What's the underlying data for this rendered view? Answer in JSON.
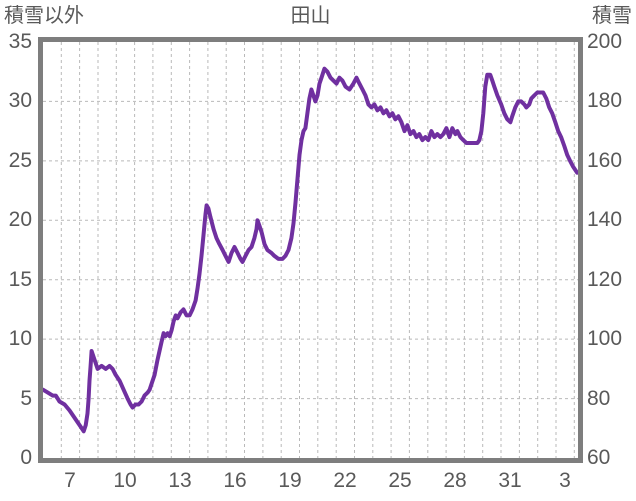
{
  "page": {
    "background": "#ffffff"
  },
  "chart_data": {
    "type": "line",
    "title": "田山",
    "grid": true,
    "colors": {
      "border": "#7e7e7e",
      "gridline": "#b9b9b9",
      "text": "#595959",
      "line": "#7030A0"
    },
    "left_axis": {
      "label": "積雪以外",
      "min": 0,
      "max": 35,
      "ticks": [
        0,
        5,
        10,
        15,
        20,
        25,
        30,
        35
      ]
    },
    "right_axis": {
      "label": "積雪",
      "min": 60,
      "max": 200,
      "ticks": [
        60,
        80,
        100,
        120,
        140,
        160,
        180,
        200
      ]
    },
    "x_axis": {
      "tick_labels": [
        "7",
        "10",
        "13",
        "16",
        "19",
        "22",
        "25",
        "28",
        "31",
        "3"
      ],
      "tick_days": [
        7,
        10,
        13,
        16,
        19,
        22,
        25,
        28,
        31,
        34
      ],
      "domain_days": [
        6.0,
        35.2
      ],
      "gridline_every_day": 1
    },
    "series": [
      {
        "name": "積雪",
        "axis": "right",
        "color": "#7030A0",
        "stroke_width": 4,
        "points_day_cm": [
          [
            6.0,
            83
          ],
          [
            6.26,
            82
          ],
          [
            6.53,
            81
          ],
          [
            6.7,
            81
          ],
          [
            6.9,
            79
          ],
          [
            7.18,
            78
          ],
          [
            7.45,
            76
          ],
          [
            7.67,
            74
          ],
          [
            7.89,
            72
          ],
          [
            8.11,
            70
          ],
          [
            8.22,
            69
          ],
          [
            8.33,
            71
          ],
          [
            8.43,
            75
          ],
          [
            8.49,
            80
          ],
          [
            8.54,
            86
          ],
          [
            8.6,
            91
          ],
          [
            8.65,
            96
          ],
          [
            8.76,
            94
          ],
          [
            8.87,
            92
          ],
          [
            8.98,
            90
          ],
          [
            9.2,
            91
          ],
          [
            9.42,
            90
          ],
          [
            9.63,
            91
          ],
          [
            9.8,
            90
          ],
          [
            9.96,
            88
          ],
          [
            10.18,
            86
          ],
          [
            10.4,
            83
          ],
          [
            10.62,
            80
          ],
          [
            10.78,
            78
          ],
          [
            10.89,
            77
          ],
          [
            11.05,
            78
          ],
          [
            11.22,
            78
          ],
          [
            11.38,
            79
          ],
          [
            11.54,
            81
          ],
          [
            11.71,
            82
          ],
          [
            11.82,
            83
          ],
          [
            11.98,
            86
          ],
          [
            12.09,
            88
          ],
          [
            12.25,
            93
          ],
          [
            12.36,
            96
          ],
          [
            12.47,
            99
          ],
          [
            12.58,
            102
          ],
          [
            12.69,
            101
          ],
          [
            12.8,
            102
          ],
          [
            12.91,
            101
          ],
          [
            13.02,
            103
          ],
          [
            13.13,
            106
          ],
          [
            13.24,
            108
          ],
          [
            13.34,
            107
          ],
          [
            13.51,
            109
          ],
          [
            13.67,
            110
          ],
          [
            13.84,
            108
          ],
          [
            14.0,
            108
          ],
          [
            14.16,
            110
          ],
          [
            14.33,
            113
          ],
          [
            14.43,
            117
          ],
          [
            14.54,
            122
          ],
          [
            14.65,
            128
          ],
          [
            14.76,
            135
          ],
          [
            14.82,
            139
          ],
          [
            14.87,
            142
          ],
          [
            14.93,
            145
          ],
          [
            15.03,
            144
          ],
          [
            15.14,
            141
          ],
          [
            15.31,
            137
          ],
          [
            15.47,
            134
          ],
          [
            15.63,
            132
          ],
          [
            15.8,
            130
          ],
          [
            15.96,
            128
          ],
          [
            16.13,
            126
          ],
          [
            16.29,
            129
          ],
          [
            16.45,
            131
          ],
          [
            16.62,
            129
          ],
          [
            16.78,
            127
          ],
          [
            16.89,
            126
          ],
          [
            17.05,
            128
          ],
          [
            17.22,
            130
          ],
          [
            17.38,
            131
          ],
          [
            17.54,
            134
          ],
          [
            17.65,
            137
          ],
          [
            17.71,
            140
          ],
          [
            17.82,
            138
          ],
          [
            17.93,
            136
          ],
          [
            18.09,
            132
          ],
          [
            18.25,
            130
          ],
          [
            18.47,
            129
          ],
          [
            18.63,
            128
          ],
          [
            18.85,
            127
          ],
          [
            19.07,
            127
          ],
          [
            19.23,
            128
          ],
          [
            19.4,
            130
          ],
          [
            19.56,
            134
          ],
          [
            19.67,
            139
          ],
          [
            19.78,
            146
          ],
          [
            19.89,
            154
          ],
          [
            20.0,
            162
          ],
          [
            20.11,
            167
          ],
          [
            20.22,
            170
          ],
          [
            20.32,
            171
          ],
          [
            20.43,
            176
          ],
          [
            20.54,
            181
          ],
          [
            20.65,
            184
          ],
          [
            20.76,
            182
          ],
          [
            20.87,
            180
          ],
          [
            20.98,
            182
          ],
          [
            21.09,
            186
          ],
          [
            21.2,
            188
          ],
          [
            21.36,
            191
          ],
          [
            21.52,
            190
          ],
          [
            21.69,
            188
          ],
          [
            21.85,
            187
          ],
          [
            22.02,
            186
          ],
          [
            22.18,
            188
          ],
          [
            22.34,
            187
          ],
          [
            22.51,
            185
          ],
          [
            22.73,
            184
          ],
          [
            22.94,
            186
          ],
          [
            23.11,
            188
          ],
          [
            23.27,
            186
          ],
          [
            23.44,
            184
          ],
          [
            23.6,
            182
          ],
          [
            23.76,
            179
          ],
          [
            23.93,
            178
          ],
          [
            24.09,
            179
          ],
          [
            24.25,
            177
          ],
          [
            24.42,
            178
          ],
          [
            24.58,
            176
          ],
          [
            24.74,
            177
          ],
          [
            24.91,
            175
          ],
          [
            25.07,
            176
          ],
          [
            25.23,
            174
          ],
          [
            25.4,
            175
          ],
          [
            25.56,
            173
          ],
          [
            25.73,
            170
          ],
          [
            25.89,
            172
          ],
          [
            26.05,
            169
          ],
          [
            26.22,
            170
          ],
          [
            26.38,
            168
          ],
          [
            26.54,
            169
          ],
          [
            26.71,
            167
          ],
          [
            26.87,
            168
          ],
          [
            27.03,
            167
          ],
          [
            27.2,
            170
          ],
          [
            27.36,
            168
          ],
          [
            27.52,
            169
          ],
          [
            27.69,
            168
          ],
          [
            27.85,
            169
          ],
          [
            28.02,
            171
          ],
          [
            28.18,
            168
          ],
          [
            28.34,
            171
          ],
          [
            28.51,
            169
          ],
          [
            28.62,
            170
          ],
          [
            28.78,
            168
          ],
          [
            28.94,
            167
          ],
          [
            29.11,
            166
          ],
          [
            29.27,
            166
          ],
          [
            29.49,
            166
          ],
          [
            29.71,
            166
          ],
          [
            29.82,
            167
          ],
          [
            29.93,
            170
          ],
          [
            30.03,
            176
          ],
          [
            30.09,
            181
          ],
          [
            30.14,
            185
          ],
          [
            30.25,
            189
          ],
          [
            30.41,
            189
          ],
          [
            30.52,
            187
          ],
          [
            30.63,
            185
          ],
          [
            30.8,
            182
          ],
          [
            31.01,
            179
          ],
          [
            31.18,
            176
          ],
          [
            31.34,
            174
          ],
          [
            31.51,
            173
          ],
          [
            31.61,
            175
          ],
          [
            31.78,
            178
          ],
          [
            31.94,
            180
          ],
          [
            32.1,
            180
          ],
          [
            32.27,
            179
          ],
          [
            32.38,
            178
          ],
          [
            32.54,
            179
          ],
          [
            32.65,
            181
          ],
          [
            32.81,
            182
          ],
          [
            32.98,
            183
          ],
          [
            33.14,
            183
          ],
          [
            33.3,
            183
          ],
          [
            33.47,
            181
          ],
          [
            33.63,
            178
          ],
          [
            33.79,
            176
          ],
          [
            33.96,
            173
          ],
          [
            34.12,
            170
          ],
          [
            34.28,
            168
          ],
          [
            34.45,
            165
          ],
          [
            34.61,
            162
          ],
          [
            34.77,
            160
          ],
          [
            34.94,
            158
          ],
          [
            35.15,
            156
          ]
        ]
      }
    ]
  }
}
